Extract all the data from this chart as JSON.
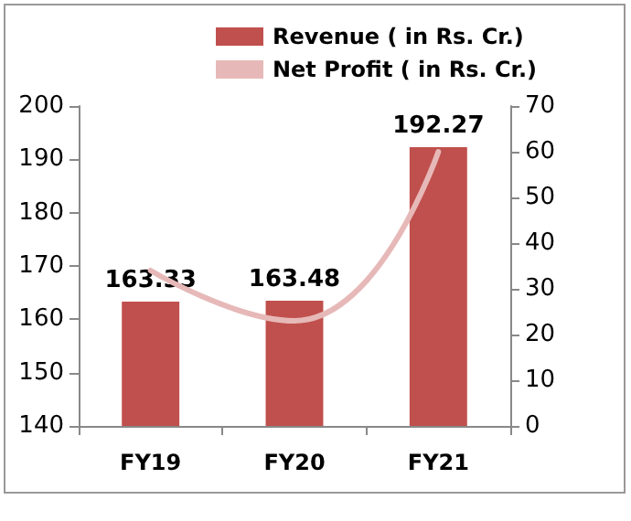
{
  "chart_data": {
    "type": "bar",
    "categories": [
      "FY19",
      "FY20",
      "FY21"
    ],
    "series": [
      {
        "name": "Revenue ( in Rs. Cr.)",
        "color": "#c0504d",
        "values": [
          163.33,
          163.48,
          192.27
        ],
        "value_labels": [
          "163.33",
          "163.48",
          "192.27"
        ]
      },
      {
        "name": "Net Profit ( in Rs. Cr.)",
        "type": "line",
        "axis": "y2",
        "color": "#e6b9b8",
        "values": [
          34,
          23,
          60
        ]
      }
    ],
    "ylim": [
      140,
      200
    ],
    "yticks": [
      140,
      150,
      160,
      170,
      180,
      190,
      200
    ],
    "y2lim": [
      0,
      70
    ],
    "y2ticks": [
      0,
      10,
      20,
      30,
      40,
      50,
      60,
      70
    ],
    "grid": false,
    "legend": "top",
    "marker": "none"
  }
}
